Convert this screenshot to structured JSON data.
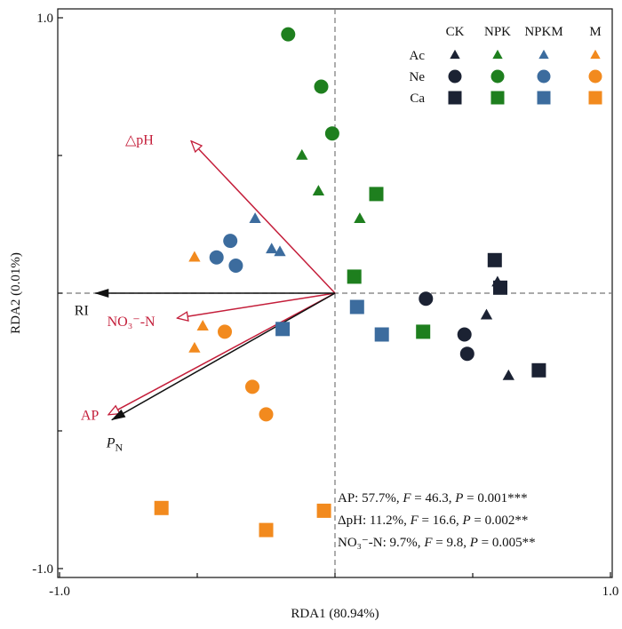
{
  "chart_data": {
    "type": "scatter",
    "xlabel": "RDA1 (80.94%)",
    "ylabel": "RDA2 (0.01%)",
    "xlim": [
      -1.0,
      1.0
    ],
    "ylim": [
      -1.0,
      1.0
    ],
    "x_ticks": [
      {
        "value": -1.0,
        "label": "-1.0"
      },
      {
        "value": 1.0,
        "label": "1.0"
      }
    ],
    "y_ticks": [
      {
        "value": 1.0,
        "label": "1.0"
      },
      {
        "value": -1.0,
        "label": "-1.0"
      }
    ],
    "y_minor_ticks": [
      0.5,
      0,
      -0.5
    ],
    "x_minor_ticks": [
      -0.5,
      0,
      0.5
    ],
    "colors": {
      "CK": "#1b2233",
      "NPK": "#1e7f1e",
      "NPKM": "#3c6c9e",
      "M": "#f28a1e",
      "env": "#c41e3a",
      "black_vec": "#111111"
    },
    "legend": {
      "position": "top-right",
      "columns": [
        "CK",
        "NPK",
        "NPKM",
        "M"
      ],
      "rows": [
        {
          "label": "Ac",
          "shape": "triangle"
        },
        {
          "label": "Ne",
          "shape": "circle"
        },
        {
          "label": "Ca",
          "shape": "square"
        }
      ]
    },
    "vectors": [
      {
        "name": "pH",
        "prefix": "△",
        "x": -0.52,
        "y": 0.55,
        "color": "env",
        "head": "open",
        "label_x": -0.71,
        "label_y": 0.56
      },
      {
        "name": "NO₃⁻-N",
        "x": -0.57,
        "y": -0.09,
        "color": "env",
        "head": "open",
        "label_x": -0.74,
        "label_y": -0.1
      },
      {
        "name": "AP",
        "x": -0.82,
        "y": -0.44,
        "color": "env",
        "head": "open",
        "label_x": -0.89,
        "label_y": -0.44
      },
      {
        "name": "RI",
        "x": -0.87,
        "y": 0.0,
        "color": "black_vec",
        "head": "solid",
        "label_x": -0.92,
        "label_y": -0.06
      },
      {
        "name": "P",
        "subscript": "N",
        "x": -0.81,
        "y": -0.46,
        "color": "black_vec",
        "head": "solid",
        "label_x": -0.8,
        "label_y": -0.54
      }
    ],
    "series": [
      {
        "name": "CK",
        "points": [
          {
            "x": 0.59,
            "y": 0.04,
            "shape": "triangle"
          },
          {
            "x": 0.55,
            "y": -0.08,
            "shape": "triangle"
          },
          {
            "x": 0.63,
            "y": -0.3,
            "shape": "triangle"
          },
          {
            "x": 0.33,
            "y": -0.02,
            "shape": "circle"
          },
          {
            "x": 0.47,
            "y": -0.15,
            "shape": "circle"
          },
          {
            "x": 0.48,
            "y": -0.22,
            "shape": "circle"
          },
          {
            "x": 0.58,
            "y": 0.12,
            "shape": "square"
          },
          {
            "x": 0.6,
            "y": 0.02,
            "shape": "square"
          },
          {
            "x": 0.74,
            "y": -0.28,
            "shape": "square"
          }
        ]
      },
      {
        "name": "NPK",
        "points": [
          {
            "x": -0.12,
            "y": 0.5,
            "shape": "triangle"
          },
          {
            "x": -0.06,
            "y": 0.37,
            "shape": "triangle"
          },
          {
            "x": 0.09,
            "y": 0.27,
            "shape": "triangle"
          },
          {
            "x": -0.17,
            "y": 0.94,
            "shape": "circle"
          },
          {
            "x": -0.05,
            "y": 0.75,
            "shape": "circle"
          },
          {
            "x": -0.01,
            "y": 0.58,
            "shape": "circle"
          },
          {
            "x": 0.15,
            "y": 0.36,
            "shape": "square"
          },
          {
            "x": 0.07,
            "y": 0.06,
            "shape": "square"
          },
          {
            "x": 0.32,
            "y": -0.14,
            "shape": "square"
          }
        ]
      },
      {
        "name": "NPKM",
        "points": [
          {
            "x": -0.29,
            "y": 0.27,
            "shape": "triangle"
          },
          {
            "x": -0.23,
            "y": 0.16,
            "shape": "triangle"
          },
          {
            "x": -0.2,
            "y": 0.15,
            "shape": "triangle"
          },
          {
            "x": -0.38,
            "y": 0.19,
            "shape": "circle"
          },
          {
            "x": -0.43,
            "y": 0.13,
            "shape": "circle"
          },
          {
            "x": -0.36,
            "y": 0.1,
            "shape": "circle"
          },
          {
            "x": 0.08,
            "y": -0.05,
            "shape": "square"
          },
          {
            "x": 0.17,
            "y": -0.15,
            "shape": "square"
          },
          {
            "x": -0.19,
            "y": -0.13,
            "shape": "square"
          }
        ]
      },
      {
        "name": "M",
        "points": [
          {
            "x": -0.51,
            "y": 0.13,
            "shape": "triangle"
          },
          {
            "x": -0.48,
            "y": -0.12,
            "shape": "triangle"
          },
          {
            "x": -0.51,
            "y": -0.2,
            "shape": "triangle"
          },
          {
            "x": -0.4,
            "y": -0.14,
            "shape": "circle"
          },
          {
            "x": -0.3,
            "y": -0.34,
            "shape": "circle"
          },
          {
            "x": -0.25,
            "y": -0.44,
            "shape": "circle"
          },
          {
            "x": -0.63,
            "y": -0.78,
            "shape": "square"
          },
          {
            "x": -0.25,
            "y": -0.86,
            "shape": "square"
          },
          {
            "x": -0.04,
            "y": -0.79,
            "shape": "square"
          }
        ]
      }
    ],
    "annotations": [
      {
        "prefix": "AP: 57.7%, ",
        "F": "46.3",
        "P": "0.001***"
      },
      {
        "prefix": "ΔpH: 11.2%, ",
        "F": "16.6",
        "P": "0.002**"
      },
      {
        "prefix": "NO₃⁻-N: 9.7%, ",
        "F": "9.8",
        "P": "0.005**"
      }
    ]
  }
}
